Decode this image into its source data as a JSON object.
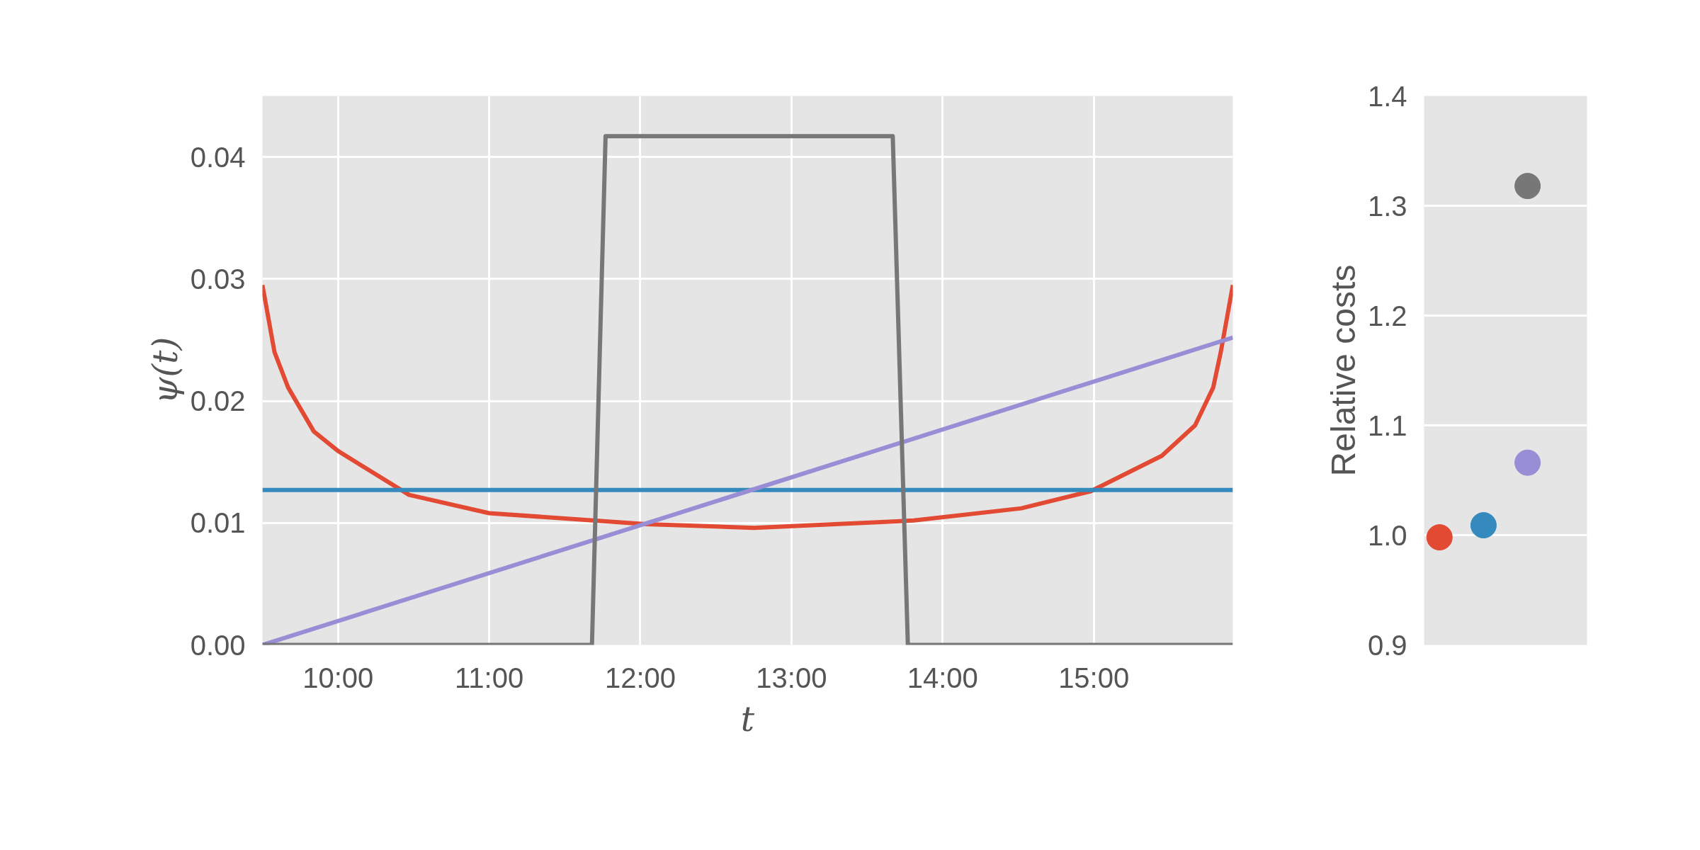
{
  "chart_data": [
    {
      "type": "line",
      "xlabel": "t",
      "ylabel": "ψ(t)",
      "xlim": [
        9.5,
        15.92
      ],
      "ylim": [
        0,
        0.045
      ],
      "xticks": [
        {
          "value": 10,
          "label": "10:00"
        },
        {
          "value": 11,
          "label": "11:00"
        },
        {
          "value": 12,
          "label": "12:00"
        },
        {
          "value": 13,
          "label": "13:00"
        },
        {
          "value": 14,
          "label": "14:00"
        },
        {
          "value": 15,
          "label": "15:00"
        }
      ],
      "yticks": [
        {
          "value": 0,
          "label": "0.00"
        },
        {
          "value": 0.01,
          "label": "0.01"
        },
        {
          "value": 0.02,
          "label": "0.02"
        },
        {
          "value": 0.03,
          "label": "0.03"
        },
        {
          "value": 0.04,
          "label": "0.04"
        }
      ],
      "grid": true,
      "marker": "none",
      "line_style": "solid",
      "series": [
        {
          "color": "#e24a33",
          "x": [
            9.5,
            9.58,
            9.67,
            9.84,
            10.0,
            10.47,
            11.0,
            12.04,
            12.75,
            13.81,
            14.52,
            14.98,
            15.45,
            15.67,
            15.79,
            15.84,
            15.92
          ],
          "values": [
            0.0295,
            0.024,
            0.0211,
            0.0175,
            0.0159,
            0.0123,
            0.0108,
            0.0099,
            0.0096,
            0.0102,
            0.0112,
            0.0126,
            0.0155,
            0.018,
            0.0211,
            0.024,
            0.0295
          ]
        },
        {
          "color": "#348abd",
          "x": [
            9.5,
            15.92
          ],
          "values": [
            0.0127,
            0.0127
          ]
        },
        {
          "color": "#988ed5",
          "x": [
            9.5,
            15.92
          ],
          "values": [
            0.0,
            0.0252
          ]
        },
        {
          "color": "#777777",
          "x": [
            9.5,
            11.68,
            11.77,
            13.67,
            13.77,
            15.92
          ],
          "values": [
            0,
            0,
            0.0417,
            0.0417,
            0,
            0
          ]
        }
      ]
    },
    {
      "type": "scatter",
      "ylabel": "Relative costs",
      "categories": [
        null,
        null,
        null,
        null
      ],
      "ylim": [
        0.9,
        1.4
      ],
      "yticks": [
        {
          "value": 0.9,
          "label": "0.9"
        },
        {
          "value": 1.0,
          "label": "1.0"
        },
        {
          "value": 1.1,
          "label": "1.1"
        },
        {
          "value": 1.2,
          "label": "1.2"
        },
        {
          "value": 1.3,
          "label": "1.3"
        },
        {
          "value": 1.4,
          "label": "1.4"
        }
      ],
      "grid": "y",
      "marker": "circle",
      "tick_labels": "y",
      "series": [
        {
          "color": "#e24a33",
          "values": [
            0.998,
            null,
            null,
            null
          ]
        },
        {
          "color": "#348abd",
          "values": [
            null,
            1.009,
            null,
            null
          ]
        },
        {
          "color": "#988ed5",
          "values": [
            null,
            null,
            1.066,
            null
          ]
        },
        {
          "color": "#777777",
          "values": [
            null,
            null,
            1.318,
            null
          ]
        }
      ]
    }
  ]
}
